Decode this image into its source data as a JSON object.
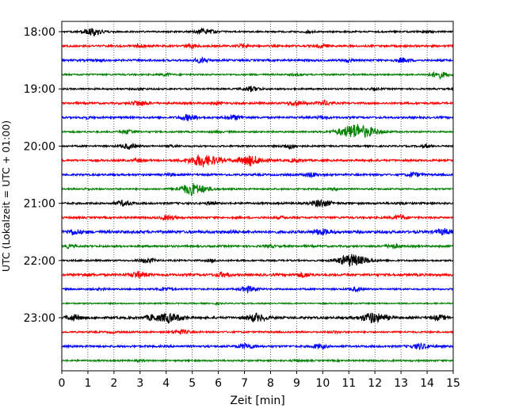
{
  "chart_data": {
    "type": "line",
    "description_kind": "seismogram helicorder",
    "xlabel": "Zeit  [min]",
    "ylabel": "UTC (Lokalzeit = UTC + 01:00)",
    "xlim": [
      0,
      15
    ],
    "x_ticks": [
      "0",
      "1",
      "2",
      "3",
      "4",
      "5",
      "6",
      "7",
      "8",
      "9",
      "10",
      "11",
      "12",
      "13",
      "14",
      "15"
    ],
    "grid": "vertical dotted at each minute",
    "y_tick_labels": [
      "18:00",
      "19:00",
      "20:00",
      "21:00",
      "22:00",
      "23:00"
    ],
    "trace_minutes": 15,
    "start_time": "18:00",
    "colors": [
      "#000000",
      "#ff0000",
      "#0000ff",
      "#008000"
    ],
    "traces": [
      {
        "time": "18:00",
        "noise": 0.5,
        "events": [
          [
            1.25,
            1.6
          ],
          [
            5.5,
            1.3
          ],
          [
            14.0,
            0.5
          ],
          [
            9.5,
            0.4
          ]
        ]
      },
      {
        "time": "18:15",
        "noise": 0.6,
        "events": [
          [
            3.0,
            0.8
          ],
          [
            5.0,
            0.8
          ],
          [
            7.0,
            0.7
          ],
          [
            10.0,
            0.8
          ]
        ]
      },
      {
        "time": "18:30",
        "noise": 0.6,
        "events": [
          [
            5.4,
            1.0
          ],
          [
            13.1,
            1.0
          ],
          [
            11.0,
            0.6
          ],
          [
            1.5,
            0.4
          ]
        ]
      },
      {
        "time": "18:45",
        "noise": 0.5,
        "events": [
          [
            14.5,
            1.5
          ],
          [
            4.0,
            0.5
          ],
          [
            9.0,
            0.5
          ]
        ]
      },
      {
        "time": "19:00",
        "noise": 0.5,
        "events": [
          [
            7.3,
            1.1
          ],
          [
            12.0,
            0.4
          ],
          [
            3.0,
            0.4
          ]
        ]
      },
      {
        "time": "19:15",
        "noise": 0.6,
        "events": [
          [
            3.0,
            1.2
          ],
          [
            9.0,
            1.1
          ],
          [
            10.1,
            1.0
          ],
          [
            6.0,
            0.5
          ]
        ]
      },
      {
        "time": "19:30",
        "noise": 0.6,
        "events": [
          [
            4.9,
            1.3
          ],
          [
            6.6,
            1.1
          ],
          [
            10.0,
            0.6
          ],
          [
            1.0,
            0.4
          ]
        ]
      },
      {
        "time": "19:45",
        "noise": 0.5,
        "events": [
          [
            2.6,
            1.0
          ],
          [
            11.4,
            3.5
          ],
          [
            6.0,
            0.4
          ]
        ]
      },
      {
        "time": "20:00",
        "noise": 0.5,
        "events": [
          [
            2.6,
            1.2
          ],
          [
            8.8,
            1.1
          ],
          [
            14.0,
            0.7
          ],
          [
            4.3,
            0.5
          ]
        ]
      },
      {
        "time": "20:15",
        "noise": 0.6,
        "events": [
          [
            5.5,
            2.8
          ],
          [
            7.3,
            2.3
          ],
          [
            3.0,
            0.7
          ],
          [
            9.0,
            0.8
          ]
        ]
      },
      {
        "time": "20:30",
        "noise": 0.6,
        "events": [
          [
            9.6,
            1.0
          ],
          [
            13.5,
            1.0
          ],
          [
            4.2,
            0.5
          ]
        ]
      },
      {
        "time": "20:45",
        "noise": 0.5,
        "events": [
          [
            5.1,
            2.6
          ],
          [
            1.0,
            0.3
          ],
          [
            10.5,
            0.4
          ]
        ]
      },
      {
        "time": "21:00",
        "noise": 0.6,
        "events": [
          [
            2.4,
            1.1
          ],
          [
            10.0,
            1.6
          ],
          [
            5.7,
            0.6
          ],
          [
            13.0,
            0.4
          ]
        ]
      },
      {
        "time": "21:15",
        "noise": 0.6,
        "events": [
          [
            4.1,
            1.0
          ],
          [
            13.0,
            1.0
          ],
          [
            8.5,
            0.5
          ]
        ]
      },
      {
        "time": "21:30",
        "noise": 0.8,
        "events": [
          [
            0.5,
            1.1
          ],
          [
            10.0,
            1.3
          ],
          [
            14.7,
            1.2
          ],
          [
            6.5,
            0.5
          ]
        ]
      },
      {
        "time": "21:45",
        "noise": 0.6,
        "events": [
          [
            12.7,
            1.0
          ],
          [
            0.3,
            0.6
          ],
          [
            8.0,
            0.5
          ]
        ]
      },
      {
        "time": "22:00",
        "noise": 0.5,
        "events": [
          [
            3.3,
            1.1
          ],
          [
            11.2,
            2.8
          ],
          [
            5.8,
            0.6
          ]
        ]
      },
      {
        "time": "22:15",
        "noise": 0.7,
        "events": [
          [
            3.0,
            1.3
          ],
          [
            6.2,
            1.0
          ],
          [
            9.3,
            1.0
          ],
          [
            1.0,
            0.5
          ]
        ]
      },
      {
        "time": "22:30",
        "noise": 0.5,
        "events": [
          [
            4.0,
            0.9
          ],
          [
            7.2,
            1.3
          ],
          [
            11.3,
            0.8
          ],
          [
            1.5,
            0.4
          ]
        ]
      },
      {
        "time": "22:45",
        "noise": 0.4,
        "events": [
          [
            6.0,
            0.3
          ]
        ]
      },
      {
        "time": "23:00",
        "noise": 0.7,
        "events": [
          [
            0.5,
            1.2
          ],
          [
            4.2,
            2.0
          ],
          [
            7.5,
            1.7
          ],
          [
            12.0,
            2.3
          ],
          [
            14.5,
            1.0
          ],
          [
            3.5,
            1.1
          ]
        ]
      },
      {
        "time": "23:15",
        "noise": 0.5,
        "events": [
          [
            4.6,
            1.0
          ],
          [
            2.0,
            0.4
          ],
          [
            10.5,
            0.4
          ]
        ]
      },
      {
        "time": "23:30",
        "noise": 0.6,
        "events": [
          [
            7.1,
            1.2
          ],
          [
            9.9,
            1.0
          ],
          [
            13.8,
            1.3
          ]
        ]
      },
      {
        "time": "23:45",
        "noise": 0.5,
        "events": [
          [
            3.0,
            0.3
          ],
          [
            9.0,
            0.3
          ]
        ]
      }
    ]
  }
}
